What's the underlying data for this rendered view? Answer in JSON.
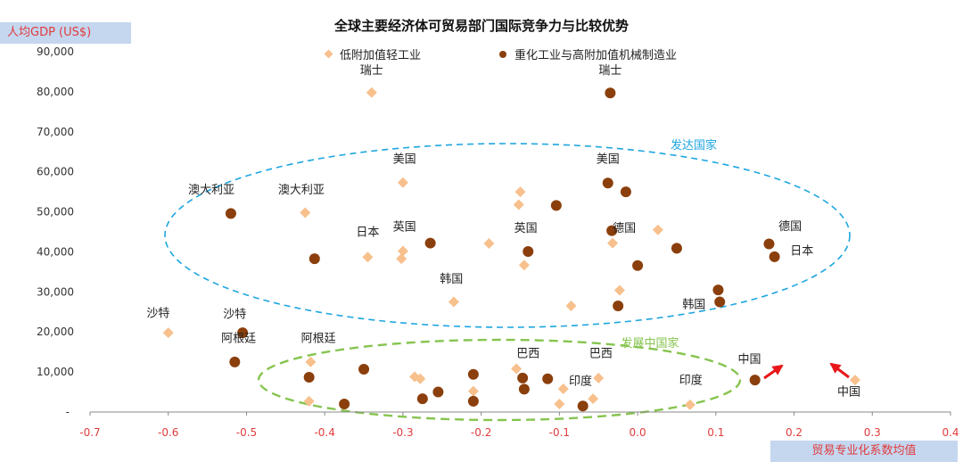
{
  "chart_data": {
    "type": "scatter",
    "title": "全球主要经济体可贸易部门国际竞争力与比较优势",
    "xlabel": "贸易专业化系数均值",
    "ylabel": "人均GDP (US$)",
    "xlim": [
      -0.7,
      0.4
    ],
    "ylim": [
      0,
      90000
    ],
    "x_ticks": [
      "-0.7",
      "-0.6",
      "-0.5",
      "-0.4",
      "-0.3",
      "-0.2",
      "-0.1",
      "0.0",
      "0.1",
      "0.2",
      "0.3",
      "0.4"
    ],
    "y_ticks": [
      "-",
      "10,000",
      "20,000",
      "30,000",
      "40,000",
      "50,000",
      "60,000",
      "70,000",
      "80,000",
      "90,000"
    ],
    "legend_position": "top",
    "series": [
      {
        "name": "低附加值轻工业",
        "marker": "diamond",
        "color": "#f7c08d",
        "points": [
          [
            -0.34,
            79800
          ],
          [
            -0.3,
            57300
          ],
          [
            -0.425,
            49800
          ],
          [
            -0.15,
            55000
          ],
          [
            -0.152,
            51800
          ],
          [
            -0.345,
            38700
          ],
          [
            -0.3,
            40200
          ],
          [
            -0.302,
            38300
          ],
          [
            -0.19,
            42100
          ],
          [
            -0.145,
            36700
          ],
          [
            -0.032,
            42200
          ],
          [
            0.026,
            45500
          ],
          [
            -0.023,
            30400
          ],
          [
            -0.085,
            26500
          ],
          [
            -0.235,
            27500
          ],
          [
            -0.6,
            19800
          ],
          [
            -0.418,
            12500
          ],
          [
            -0.155,
            10800
          ],
          [
            -0.285,
            8800
          ],
          [
            -0.278,
            8300
          ],
          [
            -0.05,
            8500
          ],
          [
            -0.21,
            5200
          ],
          [
            -0.095,
            5800
          ],
          [
            -0.42,
            2700
          ],
          [
            -0.1,
            2000
          ],
          [
            -0.057,
            3300
          ],
          [
            0.067,
            1800
          ],
          [
            0.278,
            8000
          ]
        ]
      },
      {
        "name": "重化工业与高附加值机械制造业",
        "marker": "circle",
        "color": "#8b3f0c",
        "points": [
          [
            -0.035,
            79700
          ],
          [
            -0.038,
            57200
          ],
          [
            -0.015,
            55000
          ],
          [
            -0.52,
            49600
          ],
          [
            -0.104,
            51600
          ],
          [
            -0.265,
            42200
          ],
          [
            -0.413,
            38300
          ],
          [
            -0.14,
            40100
          ],
          [
            -0.033,
            45300
          ],
          [
            0.0,
            36600
          ],
          [
            0.05,
            40900
          ],
          [
            0.168,
            42000
          ],
          [
            0.175,
            38800
          ],
          [
            0.103,
            30500
          ],
          [
            -0.025,
            26500
          ],
          [
            0.105,
            27500
          ],
          [
            -0.505,
            19800
          ],
          [
            -0.515,
            12500
          ],
          [
            -0.35,
            10700
          ],
          [
            -0.42,
            8700
          ],
          [
            -0.21,
            9400
          ],
          [
            -0.147,
            8500
          ],
          [
            -0.115,
            8300
          ],
          [
            -0.145,
            5700
          ],
          [
            -0.255,
            5000
          ],
          [
            -0.275,
            3300
          ],
          [
            -0.21,
            2700
          ],
          [
            -0.375,
            2000
          ],
          [
            -0.07,
            1500
          ],
          [
            0.15,
            8000
          ]
        ]
      }
    ],
    "annotations": [
      {
        "text": "瑞士",
        "x": -0.34,
        "y": 84400
      },
      {
        "text": "瑞士",
        "x": -0.035,
        "y": 84400
      },
      {
        "text": "美国",
        "x": -0.298,
        "y": 62300
      },
      {
        "text": "美国",
        "x": -0.038,
        "y": 62300
      },
      {
        "text": "澳大利亚",
        "x": -0.545,
        "y": 54600
      },
      {
        "text": "澳大利亚",
        "x": -0.43,
        "y": 54600
      },
      {
        "text": "日本",
        "x": -0.345,
        "y": 44000
      },
      {
        "text": "英国",
        "x": -0.298,
        "y": 45300
      },
      {
        "text": "英国",
        "x": -0.143,
        "y": 45000
      },
      {
        "text": "德国",
        "x": -0.017,
        "y": 45000
      },
      {
        "text": "德国",
        "x": 0.195,
        "y": 45500
      },
      {
        "text": "日本",
        "x": 0.21,
        "y": 39300
      },
      {
        "text": "韩国",
        "x": -0.238,
        "y": 32300
      },
      {
        "text": "韩国",
        "x": 0.072,
        "y": 26000
      },
      {
        "text": "沙特",
        "x": -0.613,
        "y": 23700
      },
      {
        "text": "沙特",
        "x": -0.515,
        "y": 23500
      },
      {
        "text": "阿根廷",
        "x": -0.51,
        "y": 17500
      },
      {
        "text": "阿根廷",
        "x": -0.408,
        "y": 17500
      },
      {
        "text": "巴西",
        "x": -0.14,
        "y": 13700
      },
      {
        "text": "巴西",
        "x": -0.047,
        "y": 13700
      },
      {
        "text": "印度",
        "x": -0.073,
        "y": 6800
      },
      {
        "text": "印度",
        "x": 0.068,
        "y": 7000
      },
      {
        "text": "中国",
        "x": 0.143,
        "y": 12300
      },
      {
        "text": "中国",
        "x": 0.27,
        "y": 4100
      }
    ],
    "groups": [
      {
        "label": "发达国家",
        "color": "#1ea6e0"
      },
      {
        "label": "发展中国家",
        "color": "#86c44f"
      }
    ]
  }
}
